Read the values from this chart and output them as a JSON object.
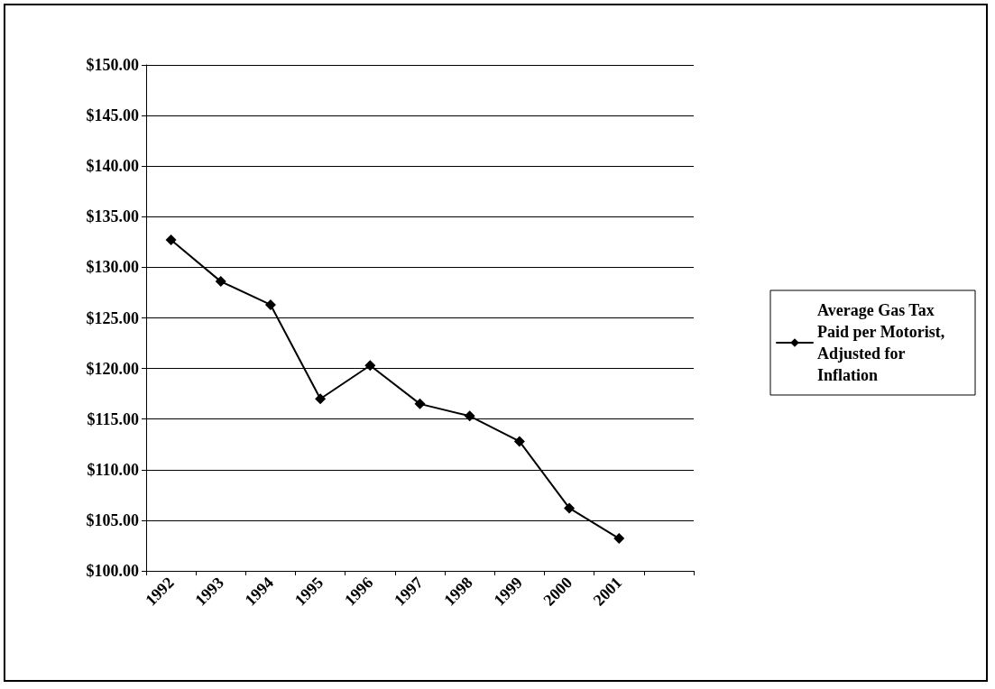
{
  "chart_data": {
    "type": "line",
    "categories": [
      "1992",
      "1993",
      "1994",
      "1995",
      "1996",
      "1997",
      "1998",
      "1999",
      "2000",
      "2001",
      null
    ],
    "series": [
      {
        "name": "Average Gas Tax Paid per Motorist, Adjusted for Inflation",
        "color": "#000000",
        "values": [
          132.7,
          128.6,
          126.3,
          117.0,
          120.3,
          116.5,
          115.3,
          112.8,
          106.2,
          103.2,
          null
        ]
      }
    ],
    "ylim": [
      100,
      150
    ],
    "yticks": [
      {
        "value": 100,
        "label": "$100.00"
      },
      {
        "value": 105,
        "label": "$105.00"
      },
      {
        "value": 110,
        "label": "$110.00"
      },
      {
        "value": 115,
        "label": "$115.00"
      },
      {
        "value": 120,
        "label": "$120.00"
      },
      {
        "value": 125,
        "label": "$125.00"
      },
      {
        "value": 130,
        "label": "$130.00"
      },
      {
        "value": 135,
        "label": "$135.00"
      },
      {
        "value": 140,
        "label": "$140.00"
      },
      {
        "value": 145,
        "label": "$145.00"
      },
      {
        "value": 150,
        "label": "$150.00"
      }
    ],
    "grid": "y",
    "legend": "right",
    "marker": "diamond",
    "line_style": "solid"
  }
}
